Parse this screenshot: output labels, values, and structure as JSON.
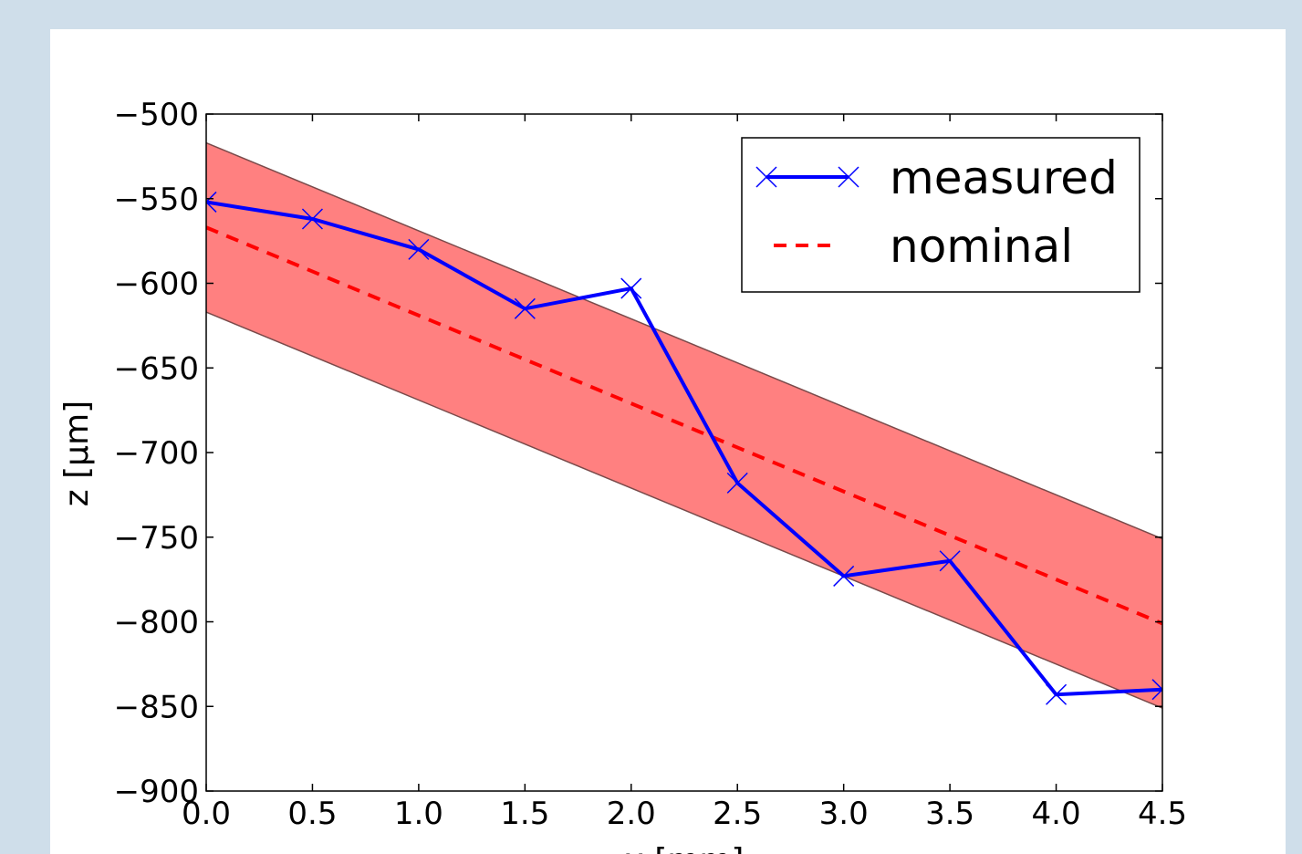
{
  "chart_data": {
    "type": "line",
    "title": "",
    "xlabel": "x [mm]",
    "ylabel": "z [µm]",
    "xlim": [
      0.0,
      4.5
    ],
    "ylim": [
      -900,
      -500
    ],
    "xticks": [
      "0.0",
      "0.5",
      "1.0",
      "1.5",
      "2.0",
      "2.5",
      "3.0",
      "3.5",
      "4.0",
      "4.5"
    ],
    "yticks": [
      "−500",
      "−550",
      "−600",
      "−650",
      "−700",
      "−750",
      "−800",
      "−850",
      "−900"
    ],
    "grid": false,
    "legend_position": "top-right",
    "series": [
      {
        "name": "measured",
        "style": "solid line with x markers",
        "color": "#0000ff",
        "x": [
          0.0,
          0.5,
          1.0,
          1.5,
          2.0,
          2.5,
          3.0,
          3.5,
          4.0,
          4.5
        ],
        "y": [
          -552,
          -562,
          -580,
          -615,
          -603,
          -718,
          -773,
          -764,
          -843,
          -840
        ]
      },
      {
        "name": "nominal",
        "style": "dashed line",
        "color": "#ff0000",
        "x": [
          0.0,
          4.5
        ],
        "y": [
          -567,
          -801
        ]
      }
    ],
    "band": {
      "color": "#ff8080",
      "edge_color": "#7a4a4a",
      "x": [
        0.0,
        4.5
      ],
      "upper": [
        -517,
        -751
      ],
      "lower": [
        -617,
        -851
      ]
    }
  }
}
